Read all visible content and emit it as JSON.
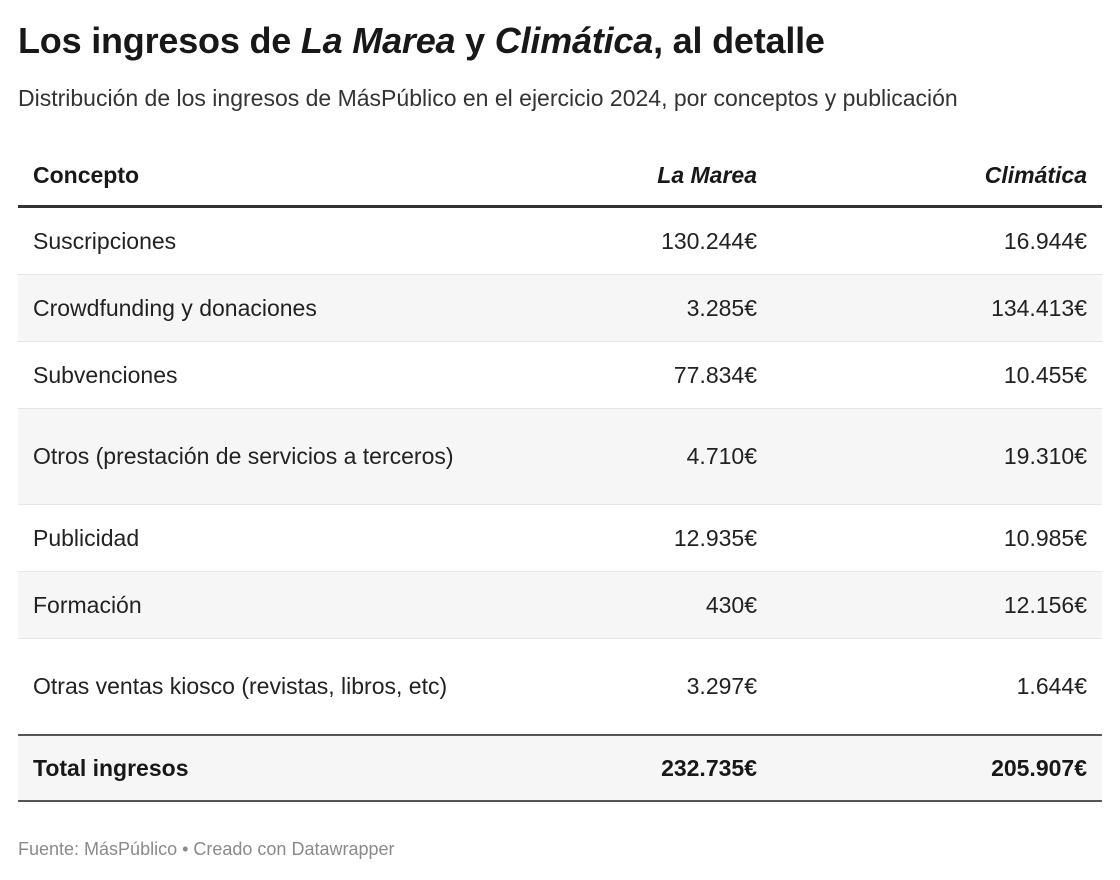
{
  "header": {
    "title_prefix": "Los ingresos de ",
    "title_em1": "La Marea",
    "title_mid": " y ",
    "title_em2": "Climática",
    "title_suffix": ", al detalle",
    "subtitle": "Distribución de los ingresos de MásPúblico en el ejercicio 2024, por conceptos y publicación"
  },
  "chart_data": {
    "type": "table",
    "columns": [
      "Concepto",
      "La Marea",
      "Climática"
    ],
    "rows": [
      [
        "Suscripciones",
        "130.244€",
        "16.944€"
      ],
      [
        "Crowdfunding y donaciones",
        "3.285€",
        "134.413€"
      ],
      [
        "Subvenciones",
        "77.834€",
        "10.455€"
      ],
      [
        "Otros (prestación de servicios a terceros)",
        "4.710€",
        "19.310€"
      ],
      [
        "Publicidad",
        "12.935€",
        "10.985€"
      ],
      [
        "Formación",
        "430€",
        "12.156€"
      ],
      [
        "Otras ventas kiosco (revistas, libros, etc)",
        "3.297€",
        "1.644€"
      ]
    ],
    "total": [
      "Total ingresos",
      "232.735€",
      "205.907€"
    ]
  },
  "footer": {
    "source": "Fuente: MásPúblico • Creado con Datawrapper"
  }
}
